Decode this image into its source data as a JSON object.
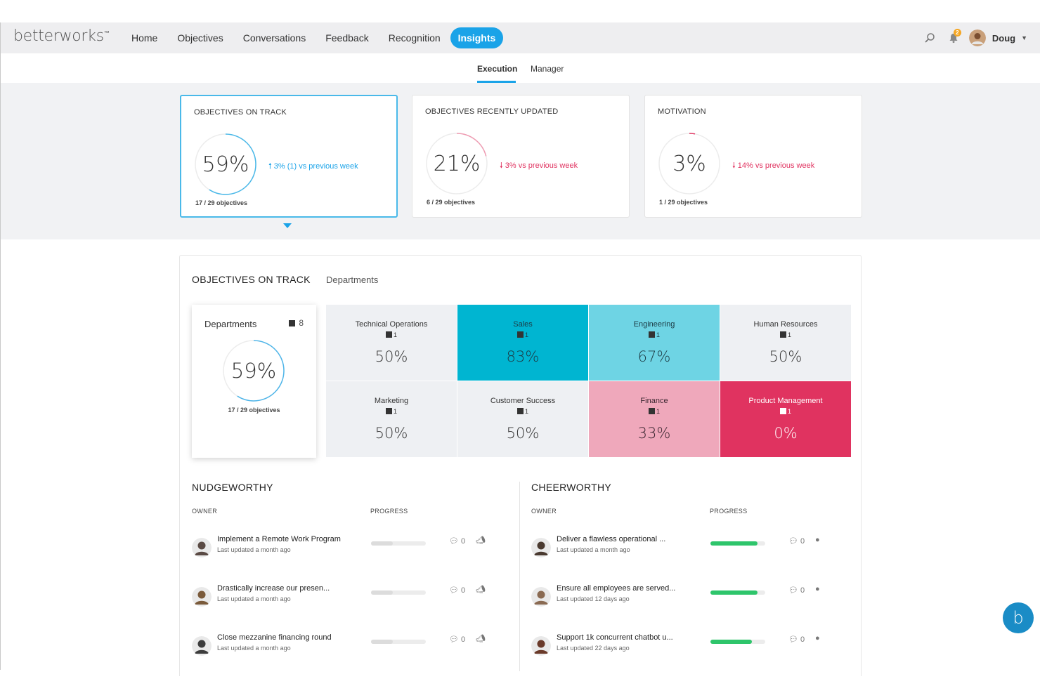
{
  "app": {
    "logo": "betterworks",
    "logo_mark": "™"
  },
  "nav": {
    "items": [
      "Home",
      "Objectives",
      "Conversations",
      "Feedback",
      "Recognition",
      "Insights"
    ],
    "active": "Insights"
  },
  "user": {
    "name": "Doug",
    "notification_count": "2"
  },
  "subnav": {
    "tabs": [
      "Execution",
      "Manager"
    ],
    "active": "Execution"
  },
  "colors": {
    "accent": "#1aa3e8",
    "up": "#1aa3e8",
    "down": "#e03360",
    "green": "#2ec56b"
  },
  "summary": [
    {
      "title": "OBJECTIVES ON TRACK",
      "value": "59%",
      "fraction": 0.59,
      "trend": "3% (1) vs previous week",
      "direction": "up",
      "count": "17 / 29 objectives",
      "ring_color": "#4ab9e9"
    },
    {
      "title": "OBJECTIVES RECENTLY UPDATED",
      "value": "21%",
      "fraction": 0.21,
      "trend": "3% vs previous week",
      "direction": "down",
      "count": "6 / 29 objectives",
      "ring_color": "#ef9bb2"
    },
    {
      "title": "MOTIVATION",
      "value": "3%",
      "fraction": 0.03,
      "trend": "14% vs previous week",
      "direction": "down",
      "count": "1 / 29 objectives",
      "ring_color": "#e03360"
    }
  ],
  "panel": {
    "title": "OBJECTIVES ON TRACK",
    "subtitle": "Departments",
    "dept_card": {
      "title": "Departments",
      "count": "8",
      "value": "59%",
      "fraction": 0.59,
      "objectives": "17 / 29 objectives"
    },
    "departments": [
      {
        "name": "Technical Operations",
        "count": "1",
        "pct": "50%",
        "bg": "#eef0f3",
        "fg": "#333333",
        "light": false
      },
      {
        "name": "Sales",
        "count": "1",
        "pct": "83%",
        "bg": "#00b5d1",
        "fg": "#1d3b45",
        "light": false
      },
      {
        "name": "Engineering",
        "count": "1",
        "pct": "67%",
        "bg": "#6ed4e4",
        "fg": "#1d3b45",
        "light": false
      },
      {
        "name": "Human Resources",
        "count": "1",
        "pct": "50%",
        "bg": "#eef0f3",
        "fg": "#333333",
        "light": false
      },
      {
        "name": "Marketing",
        "count": "1",
        "pct": "50%",
        "bg": "#eef0f3",
        "fg": "#333333",
        "light": false
      },
      {
        "name": "Customer Success",
        "count": "1",
        "pct": "50%",
        "bg": "#eef0f3",
        "fg": "#333333",
        "light": false
      },
      {
        "name": "Finance",
        "count": "1",
        "pct": "33%",
        "bg": "#efa8bb",
        "fg": "#3a2630",
        "light": false
      },
      {
        "name": "Product Management",
        "count": "1",
        "pct": "0%",
        "bg": "#e03360",
        "fg": "#ffffff",
        "light": true
      }
    ]
  },
  "nudgeworthy": {
    "heading": "NUDGEWORTHY",
    "owner_label": "OWNER",
    "progress_label": "PROGRESS",
    "rows": [
      {
        "title": "Implement a Remote Work Program",
        "sub": "Last updated a month ago",
        "progress": 0.4,
        "comments": "0",
        "avatar": "#5a4a44"
      },
      {
        "title": "Drastically increase our presen...",
        "sub": "Last updated a month ago",
        "progress": 0.4,
        "comments": "0",
        "avatar": "#7a5a3a"
      },
      {
        "title": "Close mezzanine financing round",
        "sub": "Last updated a month ago",
        "progress": 0.4,
        "comments": "0",
        "avatar": "#3c3c3c"
      }
    ]
  },
  "cheerworthy": {
    "heading": "CHEERWORTHY",
    "owner_label": "OWNER",
    "progress_label": "PROGRESS",
    "rows": [
      {
        "title": "Deliver a flawless operational ...",
        "sub": "Last updated a month ago",
        "progress": 0.86,
        "comments": "0",
        "avatar": "#4a3a30"
      },
      {
        "title": "Ensure all employees are served...",
        "sub": "Last updated 12 days ago",
        "progress": 0.86,
        "comments": "0",
        "avatar": "#8a6a52"
      },
      {
        "title": "Support 1k concurrent chatbot u...",
        "sub": "Last updated 22 days ago",
        "progress": 0.76,
        "comments": "0",
        "avatar": "#6a3a2a"
      }
    ]
  },
  "fab": {
    "label": "b"
  }
}
